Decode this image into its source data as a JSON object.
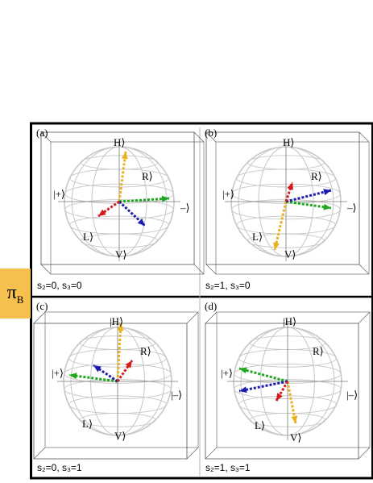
{
  "side_tag": {
    "symbol": "π",
    "subscript": "B",
    "color": "#f6c04f"
  },
  "colors": {
    "green": "#1fa81f",
    "blue": "#1c1cb0",
    "red": "#d21a1a",
    "orange": "#e8b21c",
    "wire": "#c8c8c8",
    "frame": "#000000",
    "box": "#555555"
  },
  "ket_labels": {
    "H": "H⟩",
    "R": "R⟩",
    "plus": "|+⟩",
    "minus": "–⟩",
    "L": "L⟩",
    "V": "V⟩"
  },
  "panels": [
    {
      "tag": "(a)",
      "caption": "s₂=0, s₃=0"
    },
    {
      "tag": "(b)",
      "caption": "s₂=1, s₃=0"
    },
    {
      "tag": "(c)",
      "caption": "s₂=0, s₃=1"
    },
    {
      "tag": "(d)",
      "caption": "s₂=1, s₃=1"
    }
  ],
  "panel_kets": [
    {
      "H": "H⟩",
      "R": "R⟩",
      "plus": "|+⟩",
      "minus": "–⟩",
      "L": "L⟩",
      "V": "V⟩"
    },
    {
      "H": "H⟩",
      "R": "R⟩",
      "plus": "|+⟩",
      "minus": "–⟩",
      "L": "L⟩",
      "V": "V⟩"
    },
    {
      "H": "|H⟩",
      "R": "R⟩",
      "plus": "|+⟩",
      "minus": "|–⟩",
      "L": "L⟩",
      "V": "V⟩"
    },
    {
      "H": "|H⟩",
      "R": "R⟩",
      "plus": "|+⟩",
      "minus": "|–⟩",
      "L": "L⟩",
      "V": "V⟩"
    }
  ]
}
